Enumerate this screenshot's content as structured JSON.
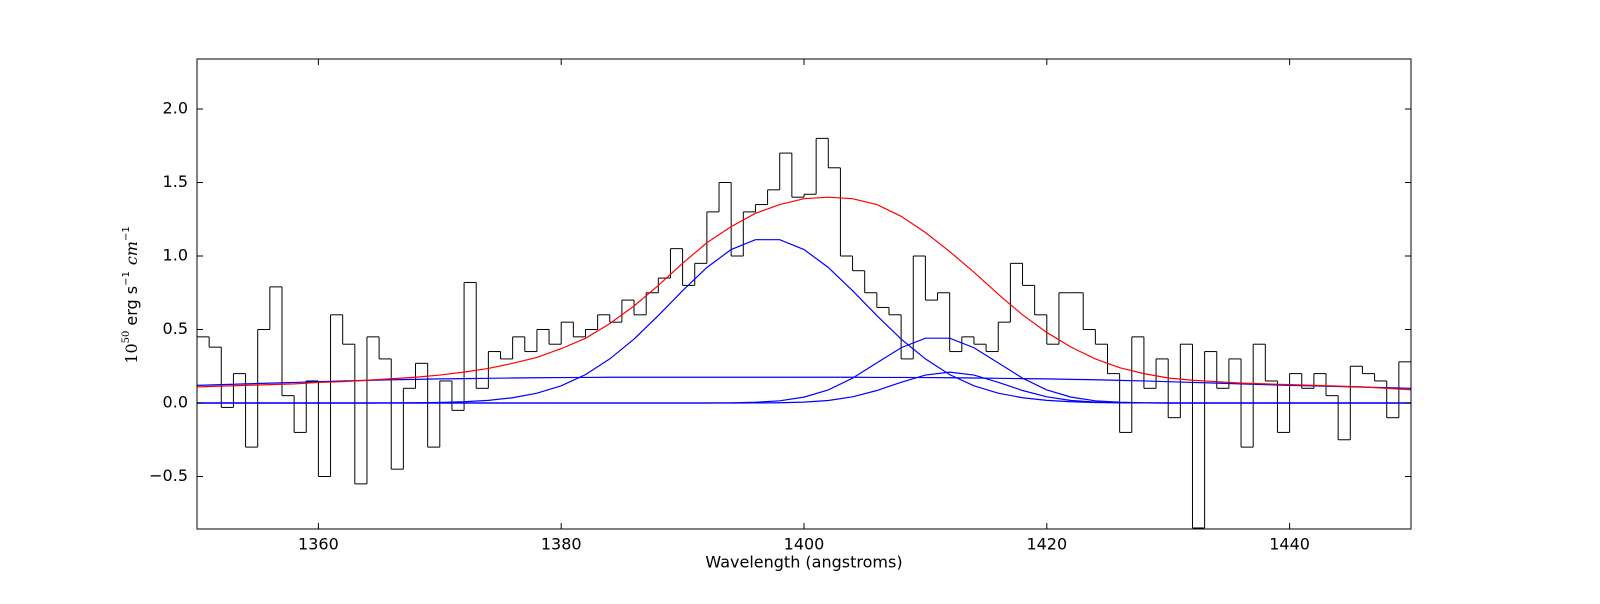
{
  "chart_data": {
    "type": "line",
    "xlabel": "Wavelength (angstroms)",
    "ylabel": [
      "10",
      "50",
      "erg s",
      "−1",
      "cm",
      "−1"
    ],
    "xlim": [
      1350,
      1450
    ],
    "ylim": [
      -0.857,
      2.34
    ],
    "xticks": [
      1360,
      1380,
      1400,
      1420,
      1440
    ],
    "yticks": [
      {
        "value": -0.5,
        "label": "−0.5"
      },
      {
        "value": 0,
        "label": "0.0"
      },
      {
        "value": 0.5,
        "label": "0.5"
      },
      {
        "value": 1,
        "label": "1.0"
      },
      {
        "value": 1.5,
        "label": "1.5"
      },
      {
        "value": 2,
        "label": "2.0"
      }
    ],
    "grid": false,
    "series": [
      {
        "color": "#000000",
        "style": "step",
        "x": [
          1350.5,
          1351.5,
          1352.5,
          1353.5,
          1354.5,
          1355.5,
          1356.5,
          1357.5,
          1358.5,
          1359.5,
          1360.5,
          1361.5,
          1362.5,
          1363.5,
          1364.5,
          1365.5,
          1366.5,
          1367.5,
          1368.5,
          1369.5,
          1370.5,
          1371.5,
          1372.5,
          1373.5,
          1374.5,
          1375.5,
          1376.5,
          1377.5,
          1378.5,
          1379.5,
          1380.5,
          1381.5,
          1382.5,
          1383.5,
          1384.5,
          1385.5,
          1386.5,
          1387.5,
          1388.5,
          1389.5,
          1390.5,
          1391.5,
          1392.5,
          1393.5,
          1394.5,
          1395.5,
          1396.5,
          1397.5,
          1398.5,
          1399.5,
          1400.5,
          1401.5,
          1402.5,
          1403.5,
          1404.5,
          1405.5,
          1406.5,
          1407.5,
          1408.5,
          1409.5,
          1410.5,
          1411.5,
          1412.5,
          1413.5,
          1414.5,
          1415.5,
          1416.5,
          1417.5,
          1418.5,
          1419.5,
          1420.5,
          1421.5,
          1422.5,
          1423.5,
          1424.5,
          1425.5,
          1426.5,
          1427.5,
          1428.5,
          1429.5,
          1430.5,
          1431.5,
          1432.5,
          1433.5,
          1434.5,
          1435.5,
          1436.5,
          1437.5,
          1438.5,
          1439.5,
          1440.5,
          1441.5,
          1442.5,
          1443.5,
          1444.5,
          1445.5,
          1446.5,
          1447.5,
          1448.5,
          1449.5
        ],
        "values": [
          0.45,
          0.38,
          -0.03,
          0.2,
          -0.3,
          0.5,
          0.79,
          0.05,
          -0.2,
          0.15,
          -0.5,
          0.6,
          0.4,
          -0.55,
          0.45,
          0.3,
          -0.45,
          0.1,
          0.27,
          -0.3,
          0.15,
          -0.05,
          0.82,
          0.1,
          0.35,
          0.3,
          0.45,
          0.35,
          0.5,
          0.4,
          0.55,
          0.45,
          0.5,
          0.6,
          0.55,
          0.7,
          0.6,
          0.75,
          0.85,
          1.05,
          0.8,
          0.95,
          1.3,
          1.5,
          1.0,
          1.3,
          1.35,
          1.45,
          1.7,
          1.4,
          1.42,
          1.8,
          1.6,
          1.0,
          0.9,
          0.75,
          0.65,
          0.6,
          0.3,
          1.0,
          0.7,
          0.75,
          0.35,
          0.45,
          0.4,
          0.35,
          0.55,
          0.95,
          0.8,
          0.6,
          0.4,
          0.75,
          0.75,
          0.5,
          0.4,
          0.2,
          -0.2,
          0.45,
          0.1,
          0.3,
          -0.1,
          0.4,
          -0.85,
          0.35,
          0.1,
          0.3,
          -0.3,
          0.4,
          0.15,
          -0.2,
          0.2,
          0.1,
          0.2,
          0.05,
          -0.25,
          0.25,
          0.2,
          0.15,
          -0.1,
          0.28
        ]
      },
      {
        "color": "#0000ff",
        "style": "line",
        "x": [
          1350,
          1352,
          1354,
          1356,
          1358,
          1360,
          1362,
          1364,
          1366,
          1368,
          1370,
          1372,
          1374,
          1376,
          1378,
          1380,
          1382,
          1384,
          1386,
          1388,
          1390,
          1392,
          1394,
          1396,
          1398,
          1400,
          1402,
          1404,
          1406,
          1408,
          1410,
          1412,
          1414,
          1416,
          1418,
          1420,
          1422,
          1424,
          1426,
          1428,
          1430,
          1432,
          1434,
          1436,
          1438,
          1440,
          1442,
          1444,
          1446,
          1448,
          1450
        ],
        "values": [
          0.12,
          0.125,
          0.13,
          0.135,
          0.14,
          0.145,
          0.15,
          0.154,
          0.158,
          0.161,
          0.164,
          0.166,
          0.168,
          0.17,
          0.172,
          0.173,
          0.174,
          0.175,
          0.175,
          0.175,
          0.175,
          0.175,
          0.175,
          0.175,
          0.175,
          0.175,
          0.175,
          0.175,
          0.174,
          0.174,
          0.173,
          0.172,
          0.17,
          0.168,
          0.166,
          0.164,
          0.161,
          0.158,
          0.154,
          0.15,
          0.145,
          0.14,
          0.135,
          0.13,
          0.125,
          0.12,
          0.116,
          0.112,
          0.108,
          0.104,
          0.1
        ]
      },
      {
        "color": "#0000ff",
        "style": "line",
        "x": [
          1350,
          1352,
          1354,
          1356,
          1358,
          1360,
          1362,
          1364,
          1366,
          1368,
          1370,
          1372,
          1374,
          1376,
          1378,
          1380,
          1382,
          1384,
          1386,
          1388,
          1390,
          1392,
          1394,
          1396,
          1398,
          1400,
          1402,
          1404,
          1406,
          1408,
          1410,
          1412,
          1414,
          1416,
          1418,
          1420,
          1422,
          1424,
          1426,
          1428,
          1430,
          1432,
          1434,
          1436,
          1438,
          1440,
          1442,
          1444,
          1446,
          1448,
          1450
        ],
        "values": [
          0,
          0,
          0,
          0,
          0,
          0,
          0,
          0,
          0.0006,
          0.0016,
          0.0037,
          0.0085,
          0.018,
          0.036,
          0.067,
          0.117,
          0.193,
          0.3,
          0.435,
          0.595,
          0.764,
          0.922,
          1.044,
          1.111,
          1.111,
          1.044,
          0.922,
          0.764,
          0.595,
          0.435,
          0.3,
          0.193,
          0.117,
          0.067,
          0.036,
          0.018,
          0.0085,
          0.0037,
          0.0015,
          0.0006,
          0,
          0,
          0,
          0,
          0,
          0,
          0,
          0,
          0,
          0,
          0
        ]
      },
      {
        "color": "#0000ff",
        "style": "line",
        "x": [
          1350,
          1352,
          1354,
          1356,
          1358,
          1360,
          1362,
          1364,
          1366,
          1368,
          1370,
          1372,
          1374,
          1376,
          1378,
          1380,
          1382,
          1384,
          1386,
          1388,
          1390,
          1392,
          1394,
          1396,
          1398,
          1400,
          1402,
          1404,
          1406,
          1408,
          1410,
          1412,
          1414,
          1416,
          1418,
          1420,
          1422,
          1424,
          1426,
          1428,
          1430,
          1432,
          1434,
          1436,
          1438,
          1440,
          1442,
          1444,
          1446,
          1448,
          1450
        ],
        "values": [
          0,
          0,
          0,
          0,
          0,
          0,
          0,
          0,
          0,
          0,
          0,
          0,
          0,
          0,
          0,
          0,
          0,
          0,
          0,
          0,
          0,
          0.0003,
          0.0014,
          0.005,
          0.015,
          0.04,
          0.089,
          0.169,
          0.273,
          0.376,
          0.441,
          0.441,
          0.376,
          0.273,
          0.169,
          0.089,
          0.04,
          0.015,
          0.005,
          0.0014,
          0.0003,
          0,
          0,
          0,
          0,
          0,
          0,
          0,
          0,
          0,
          0
        ]
      },
      {
        "color": "#0000ff",
        "style": "line",
        "x": [
          1350,
          1352,
          1354,
          1356,
          1358,
          1360,
          1362,
          1364,
          1366,
          1368,
          1370,
          1372,
          1374,
          1376,
          1378,
          1380,
          1382,
          1384,
          1386,
          1388,
          1390,
          1392,
          1394,
          1396,
          1398,
          1400,
          1402,
          1404,
          1406,
          1408,
          1410,
          1412,
          1414,
          1416,
          1418,
          1420,
          1422,
          1424,
          1426,
          1428,
          1430,
          1432,
          1434,
          1436,
          1438,
          1440,
          1442,
          1444,
          1446,
          1448,
          1450
        ],
        "values": [
          0,
          0,
          0,
          0,
          0,
          0,
          0,
          0,
          0,
          0,
          0,
          0,
          0,
          0,
          0,
          0,
          0,
          0,
          0,
          0,
          0,
          0,
          0,
          0.0004,
          0.0016,
          0.006,
          0.017,
          0.042,
          0.085,
          0.141,
          0.19,
          0.21,
          0.19,
          0.141,
          0.085,
          0.042,
          0.017,
          0.006,
          0.0016,
          0.0004,
          0,
          0,
          0,
          0,
          0,
          0,
          0,
          0,
          0,
          0,
          0
        ]
      },
      {
        "color": "#ff0000",
        "style": "line",
        "x": [
          1350,
          1352,
          1354,
          1356,
          1358,
          1360,
          1362,
          1364,
          1366,
          1368,
          1370,
          1372,
          1374,
          1376,
          1378,
          1380,
          1382,
          1384,
          1386,
          1388,
          1390,
          1392,
          1394,
          1396,
          1398,
          1400,
          1402,
          1404,
          1406,
          1408,
          1410,
          1412,
          1414,
          1416,
          1418,
          1420,
          1422,
          1424,
          1426,
          1428,
          1430,
          1432,
          1434,
          1436,
          1438,
          1440,
          1442,
          1444,
          1446,
          1448,
          1450
        ],
        "values": [
          0.11,
          0.115,
          0.12,
          0.125,
          0.13,
          0.14,
          0.145,
          0.155,
          0.165,
          0.175,
          0.19,
          0.21,
          0.235,
          0.27,
          0.31,
          0.37,
          0.44,
          0.54,
          0.66,
          0.8,
          0.95,
          1.09,
          1.2,
          1.29,
          1.35,
          1.39,
          1.4,
          1.39,
          1.35,
          1.27,
          1.16,
          1.03,
          0.89,
          0.74,
          0.6,
          0.48,
          0.38,
          0.3,
          0.24,
          0.2,
          0.17,
          0.155,
          0.145,
          0.135,
          0.13,
          0.125,
          0.12,
          0.115,
          0.11,
          0.1,
          0.09
        ]
      }
    ]
  }
}
